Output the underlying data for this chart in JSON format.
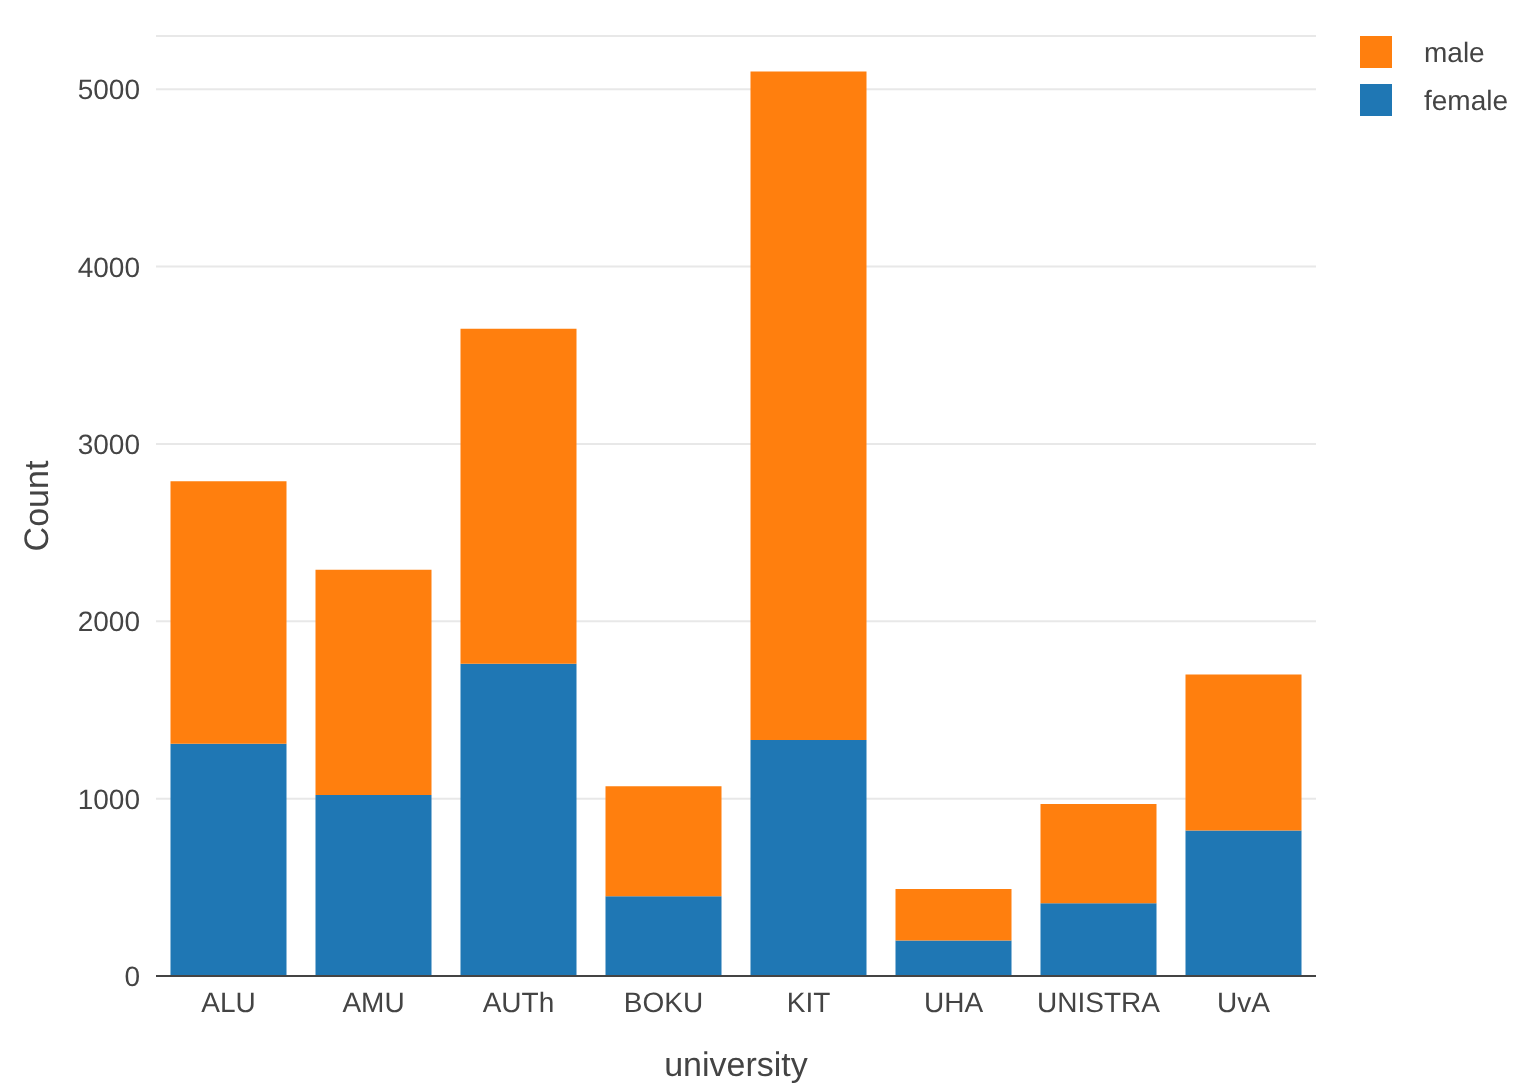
{
  "chart_data": {
    "type": "bar",
    "stacked": true,
    "xlabel": "university",
    "ylabel": "Count",
    "categories": [
      "ALU",
      "AMU",
      "AUTh",
      "BOKU",
      "KIT",
      "UHA",
      "UNISTRA",
      "UvA"
    ],
    "series": [
      {
        "name": "female",
        "color": "#1f77b4",
        "values": [
          1310,
          1020,
          1760,
          450,
          1330,
          200,
          410,
          820
        ]
      },
      {
        "name": "male",
        "color": "#ff7f0e",
        "values": [
          1480,
          1270,
          1890,
          620,
          3770,
          290,
          560,
          880
        ]
      }
    ],
    "ylim": [
      0,
      5300
    ],
    "yticks": [
      0,
      1000,
      2000,
      3000,
      4000,
      5000
    ],
    "grid": "y",
    "legend": "top right"
  }
}
